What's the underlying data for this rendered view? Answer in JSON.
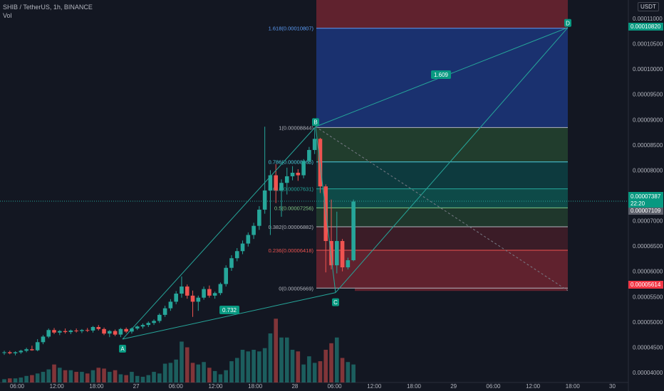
{
  "header": {
    "symbol": "SHIB / TetherUS, 1h, BINANCE",
    "volume_label": "Vol"
  },
  "currency_button": "USDT",
  "colors": {
    "up": "#26a69a",
    "down": "#ef5350",
    "fib_blue": "#2962ff",
    "background": "#131722"
  },
  "price_labels": {
    "target": "0.00010820",
    "current": "0.00007387",
    "countdown": "22:20",
    "high_line": "0.00007109",
    "stop": "0.00005614"
  },
  "chart_data": {
    "type": "candlestick",
    "symbol": "SHIB / TetherUS",
    "interval": "1h",
    "exchange": "BINANCE",
    "y_ticks": [
      "0.00011000",
      "0.00010500",
      "0.00010000",
      "0.00009500",
      "0.00009000",
      "0.00008500",
      "0.00008000",
      "0.00007500",
      "0.00007000",
      "0.00006500",
      "0.00006000",
      "0.00005500",
      "0.00005000",
      "0.00004500",
      "0.00004000"
    ],
    "x_ticks": [
      "06:00",
      "12:00",
      "18:00",
      "27",
      "06:00",
      "12:00",
      "18:00",
      "28",
      "06:00",
      "12:00",
      "18:00",
      "29",
      "06:00",
      "12:00",
      "18:00",
      "30"
    ],
    "ylim": [
      3.86e-05,
      0.000114
    ],
    "candles": [
      {
        "o": 4.39e-05,
        "h": 4.43e-05,
        "l": 4.35e-05,
        "c": 4.4e-05
      },
      {
        "o": 4.4e-05,
        "h": 4.43e-05,
        "l": 4.36e-05,
        "c": 4.38e-05
      },
      {
        "o": 4.38e-05,
        "h": 4.42e-05,
        "l": 4.34e-05,
        "c": 4.4e-05
      },
      {
        "o": 4.4e-05,
        "h": 4.45e-05,
        "l": 4.37e-05,
        "c": 4.43e-05
      },
      {
        "o": 4.43e-05,
        "h": 4.49e-05,
        "l": 4.4e-05,
        "c": 4.46e-05
      },
      {
        "o": 4.46e-05,
        "h": 4.53e-05,
        "l": 4.43e-05,
        "c": 4.44e-05
      },
      {
        "o": 4.44e-05,
        "h": 4.66e-05,
        "l": 4.42e-05,
        "c": 4.6e-05
      },
      {
        "o": 4.6e-05,
        "h": 4.74e-05,
        "l": 4.56e-05,
        "c": 4.71e-05
      },
      {
        "o": 4.71e-05,
        "h": 4.87e-05,
        "l": 4.68e-05,
        "c": 4.84e-05
      },
      {
        "o": 4.84e-05,
        "h": 4.88e-05,
        "l": 4.76e-05,
        "c": 4.79e-05
      },
      {
        "o": 4.79e-05,
        "h": 4.84e-05,
        "l": 4.74e-05,
        "c": 4.82e-05
      },
      {
        "o": 4.82e-05,
        "h": 4.87e-05,
        "l": 4.77e-05,
        "c": 4.8e-05
      },
      {
        "o": 4.8e-05,
        "h": 4.85e-05,
        "l": 4.76e-05,
        "c": 4.83e-05
      },
      {
        "o": 4.83e-05,
        "h": 4.87e-05,
        "l": 4.79e-05,
        "c": 4.82e-05
      },
      {
        "o": 4.82e-05,
        "h": 4.86e-05,
        "l": 4.78e-05,
        "c": 4.84e-05
      },
      {
        "o": 4.84e-05,
        "h": 4.88e-05,
        "l": 4.8e-05,
        "c": 4.83e-05
      },
      {
        "o": 4.83e-05,
        "h": 4.92e-05,
        "l": 4.79e-05,
        "c": 4.9e-05
      },
      {
        "o": 4.9e-05,
        "h": 4.94e-05,
        "l": 4.83e-05,
        "c": 4.86e-05
      },
      {
        "o": 4.86e-05,
        "h": 4.89e-05,
        "l": 4.74e-05,
        "c": 4.77e-05
      },
      {
        "o": 4.77e-05,
        "h": 4.84e-05,
        "l": 4.7e-05,
        "c": 4.82e-05
      },
      {
        "o": 4.82e-05,
        "h": 4.85e-05,
        "l": 4.72e-05,
        "c": 4.75e-05
      },
      {
        "o": 4.75e-05,
        "h": 4.88e-05,
        "l": 4.7e-05,
        "c": 4.86e-05
      },
      {
        "o": 4.86e-05,
        "h": 4.89e-05,
        "l": 4.78e-05,
        "c": 4.81e-05
      },
      {
        "o": 4.81e-05,
        "h": 4.89e-05,
        "l": 4.77e-05,
        "c": 4.87e-05
      },
      {
        "o": 4.87e-05,
        "h": 4.93e-05,
        "l": 4.84e-05,
        "c": 4.91e-05
      },
      {
        "o": 4.91e-05,
        "h": 4.97e-05,
        "l": 4.87e-05,
        "c": 4.94e-05
      },
      {
        "o": 4.94e-05,
        "h": 5.01e-05,
        "l": 4.9e-05,
        "c": 4.98e-05
      },
      {
        "o": 4.98e-05,
        "h": 5.05e-05,
        "l": 4.94e-05,
        "c": 5.02e-05
      },
      {
        "o": 5.02e-05,
        "h": 5.17e-05,
        "l": 4.98e-05,
        "c": 5.14e-05
      },
      {
        "o": 5.14e-05,
        "h": 5.32e-05,
        "l": 5.1e-05,
        "c": 5.27e-05
      },
      {
        "o": 5.27e-05,
        "h": 5.45e-05,
        "l": 5.22e-05,
        "c": 5.4e-05
      },
      {
        "o": 5.4e-05,
        "h": 5.61e-05,
        "l": 5.35e-05,
        "c": 5.56e-05
      },
      {
        "o": 5.56e-05,
        "h": 5.9e-05,
        "l": 5.48e-05,
        "c": 5.7e-05
      },
      {
        "o": 5.7e-05,
        "h": 5.74e-05,
        "l": 5.46e-05,
        "c": 5.52e-05
      },
      {
        "o": 5.52e-05,
        "h": 5.62e-05,
        "l": 5.1e-05,
        "c": 5.4e-05
      },
      {
        "o": 5.4e-05,
        "h": 5.52e-05,
        "l": 5.22e-05,
        "c": 5.48e-05
      },
      {
        "o": 5.48e-05,
        "h": 5.7e-05,
        "l": 5.44e-05,
        "c": 5.65e-05
      },
      {
        "o": 5.65e-05,
        "h": 5.72e-05,
        "l": 5.48e-05,
        "c": 5.52e-05
      },
      {
        "o": 5.52e-05,
        "h": 5.6e-05,
        "l": 5.46e-05,
        "c": 5.57e-05
      },
      {
        "o": 5.57e-05,
        "h": 5.78e-05,
        "l": 5.53e-05,
        "c": 5.75e-05
      },
      {
        "o": 5.75e-05,
        "h": 6.12e-05,
        "l": 5.7e-05,
        "c": 6.07e-05
      },
      {
        "o": 6.07e-05,
        "h": 6.32e-05,
        "l": 6.01e-05,
        "c": 6.26e-05
      },
      {
        "o": 6.26e-05,
        "h": 6.46e-05,
        "l": 6.2e-05,
        "c": 6.4e-05
      },
      {
        "o": 6.4e-05,
        "h": 6.61e-05,
        "l": 6.34e-05,
        "c": 6.55e-05
      },
      {
        "o": 6.55e-05,
        "h": 6.77e-05,
        "l": 6.49e-05,
        "c": 6.72e-05
      },
      {
        "o": 6.72e-05,
        "h": 6.96e-05,
        "l": 6.64e-05,
        "c": 6.9e-05
      },
      {
        "o": 6.9e-05,
        "h": 7.29e-05,
        "l": 6.82e-05,
        "c": 7.22e-05
      },
      {
        "o": 7.22e-05,
        "h": 8.86e-05,
        "l": 7.14e-05,
        "c": 7.6e-05
      },
      {
        "o": 7.6e-05,
        "h": 8e-05,
        "l": 6.72e-05,
        "c": 7.9e-05
      },
      {
        "o": 7.9e-05,
        "h": 8.12e-05,
        "l": 7.35e-05,
        "c": 7.6e-05
      },
      {
        "o": 7.6e-05,
        "h": 7.82e-05,
        "l": 7.08e-05,
        "c": 7.75e-05
      },
      {
        "o": 7.75e-05,
        "h": 8.05e-05,
        "l": 7.52e-05,
        "c": 7.88e-05
      },
      {
        "o": 7.88e-05,
        "h": 8.08e-05,
        "l": 7.8e-05,
        "c": 7.95e-05
      },
      {
        "o": 7.95e-05,
        "h": 8.02e-05,
        "l": 7.79e-05,
        "c": 7.9e-05
      },
      {
        "o": 7.9e-05,
        "h": 8.22e-05,
        "l": 7.84e-05,
        "c": 8.18e-05
      },
      {
        "o": 8.18e-05,
        "h": 8.46e-05,
        "l": 8.12e-05,
        "c": 8.4e-05
      },
      {
        "o": 8.4e-05,
        "h": 8.84e-05,
        "l": 8.32e-05,
        "c": 8.62e-05
      },
      {
        "o": 8.62e-05,
        "h": 8.64e-05,
        "l": 7.55e-05,
        "c": 7.68e-05
      },
      {
        "o": 7.68e-05,
        "h": 7.72e-05,
        "l": 5.98e-05,
        "c": 6.6e-05
      },
      {
        "o": 6.6e-05,
        "h": 7.42e-05,
        "l": 6.04e-05,
        "c": 6.12e-05
      },
      {
        "o": 6.12e-05,
        "h": 7.18e-05,
        "l": 5.96e-05,
        "c": 6.6e-05
      },
      {
        "o": 6.6e-05,
        "h": 6.64e-05,
        "l": 6e-05,
        "c": 6.08e-05
      },
      {
        "o": 6.08e-05,
        "h": 6.27e-05,
        "l": 6.04e-05,
        "c": 6.22e-05
      },
      {
        "o": 6.22e-05,
        "h": 7.42e-05,
        "l": 6.2e-05,
        "c": 7.38e-05
      }
    ],
    "volumes": [
      4,
      5,
      5,
      6,
      8,
      9,
      11,
      13,
      16,
      22,
      18,
      15,
      15,
      13,
      13,
      11,
      15,
      18,
      17,
      13,
      15,
      10,
      9,
      13,
      8,
      7,
      9,
      13,
      11,
      23,
      24,
      28,
      50,
      43,
      24,
      22,
      25,
      18,
      14,
      10,
      15,
      26,
      30,
      40,
      38,
      40,
      38,
      42,
      60,
      78,
      55,
      55,
      40,
      38,
      22,
      32,
      24,
      26,
      40,
      48,
      55,
      30,
      25,
      22
    ],
    "volume_range": [
      0,
      120
    ],
    "fibonacci": [
      {
        "ratio": "1.618",
        "price": 0.00010807,
        "label": "1.618(0.00010807)"
      },
      {
        "ratio": "1",
        "price": 8.844e-05,
        "label": "1(0.00008844)"
      },
      {
        "ratio": "0.786",
        "price": 8.165e-05,
        "label": "0.786(0.00008165)"
      },
      {
        "ratio": "0.618",
        "price": 7.631e-05,
        "label": "0.618(0.00007631)"
      },
      {
        "ratio": "0.5",
        "price": 7.256e-05,
        "label": "0.5(0.00007256)"
      },
      {
        "ratio": "0.382",
        "price": 6.882e-05,
        "label": "0.382(0.00006882)"
      },
      {
        "ratio": "0.236",
        "price": 6.418e-05,
        "label": "0.236(0.00006418)"
      },
      {
        "ratio": "0",
        "price": 5.669e-05,
        "label": "0(0.00005669)"
      }
    ],
    "pattern_points": [
      {
        "label": "A",
        "price": 4.66e-05
      },
      {
        "label": "B",
        "price": 8.86e-05
      },
      {
        "label": "C",
        "price": 5.58e-05
      },
      {
        "label": "D",
        "price": 0.0001082
      }
    ],
    "ratio_labels": [
      "0.732",
      "1.609"
    ],
    "current_price": 7.387e-05,
    "price_lines": [
      7.109e-05,
      5.614e-05
    ]
  }
}
